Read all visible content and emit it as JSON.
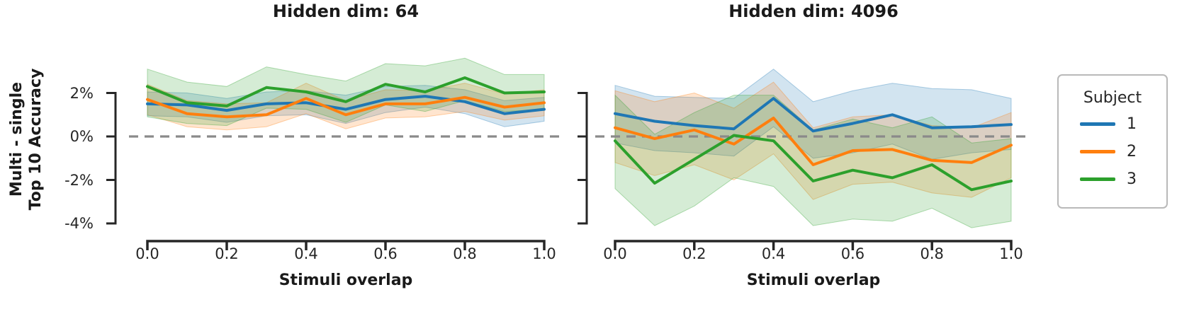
{
  "figure": {
    "background": "#ffffff",
    "text_color": "#262626",
    "zero_line_color": "#8a8a8a",
    "ylabel_line1": "Multi - single",
    "ylabel_line2": "Top 10 Accuracy"
  },
  "legend": {
    "title": "Subject",
    "position": "right-outside",
    "entries": [
      {
        "label": "1",
        "color": "#1f77b4"
      },
      {
        "label": "2",
        "color": "#ff7f0e"
      },
      {
        "label": "3",
        "color": "#2ca02c"
      }
    ]
  },
  "chart_data": [
    {
      "type": "line",
      "title": "Hidden dim: 64",
      "xlabel": "Stimuli overlap",
      "ylabel": "Multi - single Top 10 Accuracy",
      "x": [
        0.0,
        0.1,
        0.2,
        0.3,
        0.4,
        0.5,
        0.6,
        0.7,
        0.8,
        0.9,
        1.0
      ],
      "x_tick_values": [
        0.0,
        0.2,
        0.4,
        0.6,
        0.8,
        1.0
      ],
      "x_tick_labels": [
        "0.0",
        "0.2",
        "0.4",
        "0.6",
        "0.8",
        "1.0"
      ],
      "y_tick_values": [
        2,
        0,
        -2,
        -4
      ],
      "y_tick_labels": [
        "2%",
        "0%",
        "-2%",
        "-4%"
      ],
      "ylim": [
        -4.5,
        3.8
      ],
      "zero_line": true,
      "grid": false,
      "series": [
        {
          "name": "1",
          "color": "#1f77b4",
          "values": [
            1.5,
            1.45,
            1.2,
            1.5,
            1.55,
            1.25,
            1.7,
            1.85,
            1.6,
            1.05,
            1.25
          ],
          "band_low": [
            0.95,
            0.9,
            0.65,
            0.95,
            1.0,
            0.6,
            1.1,
            1.35,
            1.05,
            0.45,
            0.7
          ],
          "band_high": [
            2.05,
            2.0,
            1.75,
            2.05,
            2.1,
            1.9,
            2.3,
            2.35,
            2.15,
            1.65,
            1.8
          ]
        },
        {
          "name": "2",
          "color": "#ff7f0e",
          "values": [
            1.7,
            1.05,
            0.9,
            1.0,
            1.75,
            1.0,
            1.5,
            1.5,
            1.8,
            1.35,
            1.55
          ],
          "band_low": [
            1.0,
            0.45,
            0.3,
            0.45,
            1.05,
            0.35,
            0.85,
            0.9,
            1.15,
            0.75,
            0.95
          ],
          "band_high": [
            2.4,
            1.65,
            1.5,
            1.55,
            2.45,
            1.65,
            2.15,
            2.1,
            2.45,
            1.95,
            2.15
          ]
        },
        {
          "name": "3",
          "color": "#2ca02c",
          "values": [
            2.3,
            1.55,
            1.4,
            2.25,
            2.05,
            1.6,
            2.4,
            2.05,
            2.7,
            2.0,
            2.05
          ],
          "band_low": [
            0.9,
            0.6,
            0.5,
            1.3,
            1.25,
            0.65,
            1.45,
            1.15,
            1.65,
            1.15,
            1.25
          ],
          "band_high": [
            3.1,
            2.5,
            2.3,
            3.2,
            2.85,
            2.55,
            3.35,
            3.25,
            3.6,
            2.85,
            2.85
          ]
        }
      ]
    },
    {
      "type": "line",
      "title": "Hidden dim: 4096",
      "xlabel": "Stimuli overlap",
      "ylabel": "Multi - single Top 10 Accuracy",
      "x": [
        0.0,
        0.1,
        0.2,
        0.3,
        0.4,
        0.5,
        0.6,
        0.7,
        0.8,
        0.9,
        1.0
      ],
      "x_tick_values": [
        0.0,
        0.2,
        0.4,
        0.6,
        0.8,
        1.0
      ],
      "x_tick_labels": [
        "0.0",
        "0.2",
        "0.4",
        "0.6",
        "0.8",
        "1.0"
      ],
      "y_tick_values": [
        2,
        0,
        -2,
        -4
      ],
      "y_tick_labels": [
        "",
        "",
        "",
        ""
      ],
      "ylim": [
        -4.5,
        3.8
      ],
      "zero_line": true,
      "grid": false,
      "series": [
        {
          "name": "1",
          "color": "#1f77b4",
          "values": [
            1.05,
            0.7,
            0.5,
            0.35,
            1.75,
            0.25,
            0.6,
            1.0,
            0.4,
            0.45,
            0.55
          ],
          "band_low": [
            -0.3,
            -0.65,
            -0.75,
            -0.9,
            0.45,
            -1.0,
            -0.75,
            -0.35,
            -1.05,
            -0.75,
            -0.6
          ],
          "band_high": [
            2.35,
            1.85,
            1.8,
            1.75,
            3.1,
            1.6,
            2.1,
            2.45,
            2.2,
            2.15,
            1.75
          ]
        },
        {
          "name": "2",
          "color": "#ff7f0e",
          "values": [
            0.4,
            -0.1,
            0.3,
            -0.35,
            0.85,
            -1.3,
            -0.65,
            -0.6,
            -1.1,
            -1.2,
            -0.4
          ],
          "band_low": [
            -1.2,
            -1.8,
            -1.3,
            -2.0,
            -0.8,
            -2.9,
            -2.2,
            -2.1,
            -2.6,
            -2.8,
            -1.9
          ],
          "band_high": [
            2.1,
            1.6,
            2.0,
            1.3,
            2.5,
            0.4,
            0.9,
            1.0,
            0.5,
            0.4,
            1.1
          ]
        },
        {
          "name": "3",
          "color": "#2ca02c",
          "values": [
            -0.2,
            -2.15,
            -1.05,
            0.05,
            -0.2,
            -2.05,
            -1.55,
            -1.9,
            -1.3,
            -2.45,
            -2.05
          ],
          "band_low": [
            -2.4,
            -4.1,
            -3.2,
            -1.9,
            -2.3,
            -4.1,
            -3.8,
            -3.9,
            -3.3,
            -4.2,
            -3.9
          ],
          "band_high": [
            1.9,
            0.1,
            1.1,
            1.9,
            1.9,
            0.3,
            0.8,
            0.4,
            0.9,
            -0.3,
            -0.1
          ]
        }
      ]
    }
  ]
}
